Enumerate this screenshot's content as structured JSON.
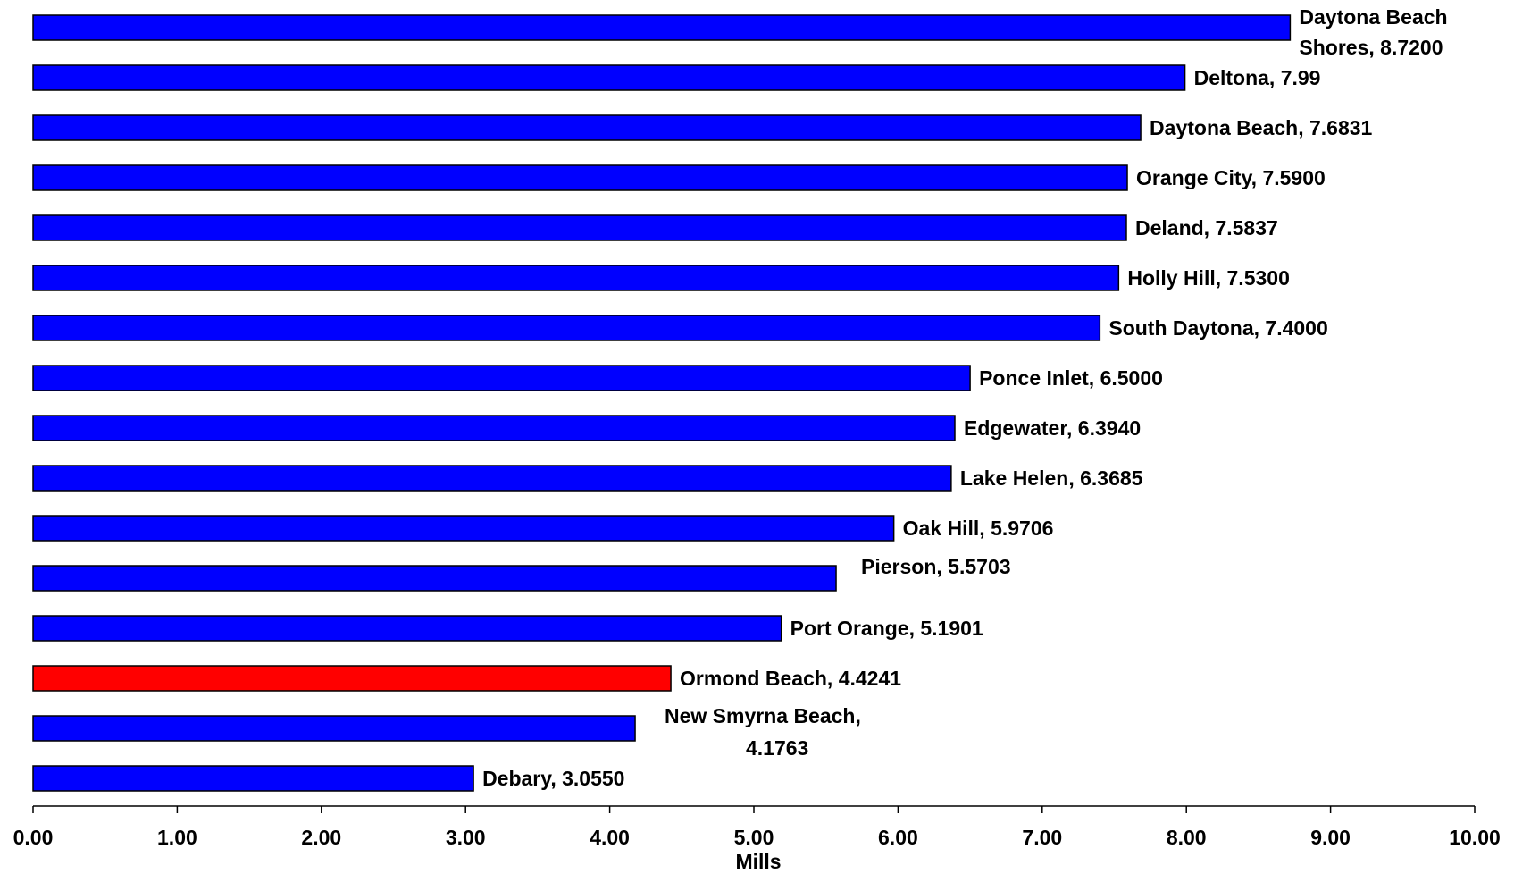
{
  "chart_data": {
    "type": "bar",
    "orientation": "horizontal",
    "title": "",
    "xlabel": "Mills",
    "ylabel": "",
    "xlim": [
      0,
      10
    ],
    "xticks": [
      "0.00",
      "1.00",
      "2.00",
      "3.00",
      "4.00",
      "5.00",
      "6.00",
      "7.00",
      "8.00",
      "9.00",
      "10.00"
    ],
    "grid": false,
    "legend": "none",
    "colors": {
      "default": "#0000FF",
      "highlight": "#FF0000",
      "border": "#000000"
    },
    "bars": [
      {
        "label_lines": [
          "Daytona Beach",
          "Shores, 8.7200"
        ],
        "value": 8.72,
        "highlight": false
      },
      {
        "label_lines": [
          "Deltona, 7.99"
        ],
        "value": 7.99,
        "highlight": false
      },
      {
        "label_lines": [
          "Daytona Beach, 7.6831"
        ],
        "value": 7.6831,
        "highlight": false
      },
      {
        "label_lines": [
          "Orange City, 7.5900"
        ],
        "value": 7.59,
        "highlight": false
      },
      {
        "label_lines": [
          "Deland, 7.5837"
        ],
        "value": 7.5837,
        "highlight": false
      },
      {
        "label_lines": [
          "Holly Hill, 7.5300"
        ],
        "value": 7.53,
        "highlight": false
      },
      {
        "label_lines": [
          "South Daytona, 7.4000"
        ],
        "value": 7.4,
        "highlight": false
      },
      {
        "label_lines": [
          "Ponce Inlet, 6.5000"
        ],
        "value": 6.5,
        "highlight": false
      },
      {
        "label_lines": [
          "Edgewater, 6.3940"
        ],
        "value": 6.394,
        "highlight": false
      },
      {
        "label_lines": [
          "Lake Helen, 6.3685"
        ],
        "value": 6.3685,
        "highlight": false
      },
      {
        "label_lines": [
          "Oak Hill, 5.9706"
        ],
        "value": 5.9706,
        "highlight": false
      },
      {
        "label_lines": [
          "Pierson, 5.5703"
        ],
        "value": 5.5703,
        "highlight": false
      },
      {
        "label_lines": [
          "Port Orange, 5.1901"
        ],
        "value": 5.1901,
        "highlight": false
      },
      {
        "label_lines": [
          "Ormond Beach, 4.4241"
        ],
        "value": 4.4241,
        "highlight": true
      },
      {
        "label_lines": [
          "New Smyrna Beach,",
          "4.1763"
        ],
        "value": 4.1763,
        "highlight": false
      },
      {
        "label_lines": [
          "Debary, 3.0550"
        ],
        "value": 3.055,
        "highlight": false
      }
    ]
  }
}
